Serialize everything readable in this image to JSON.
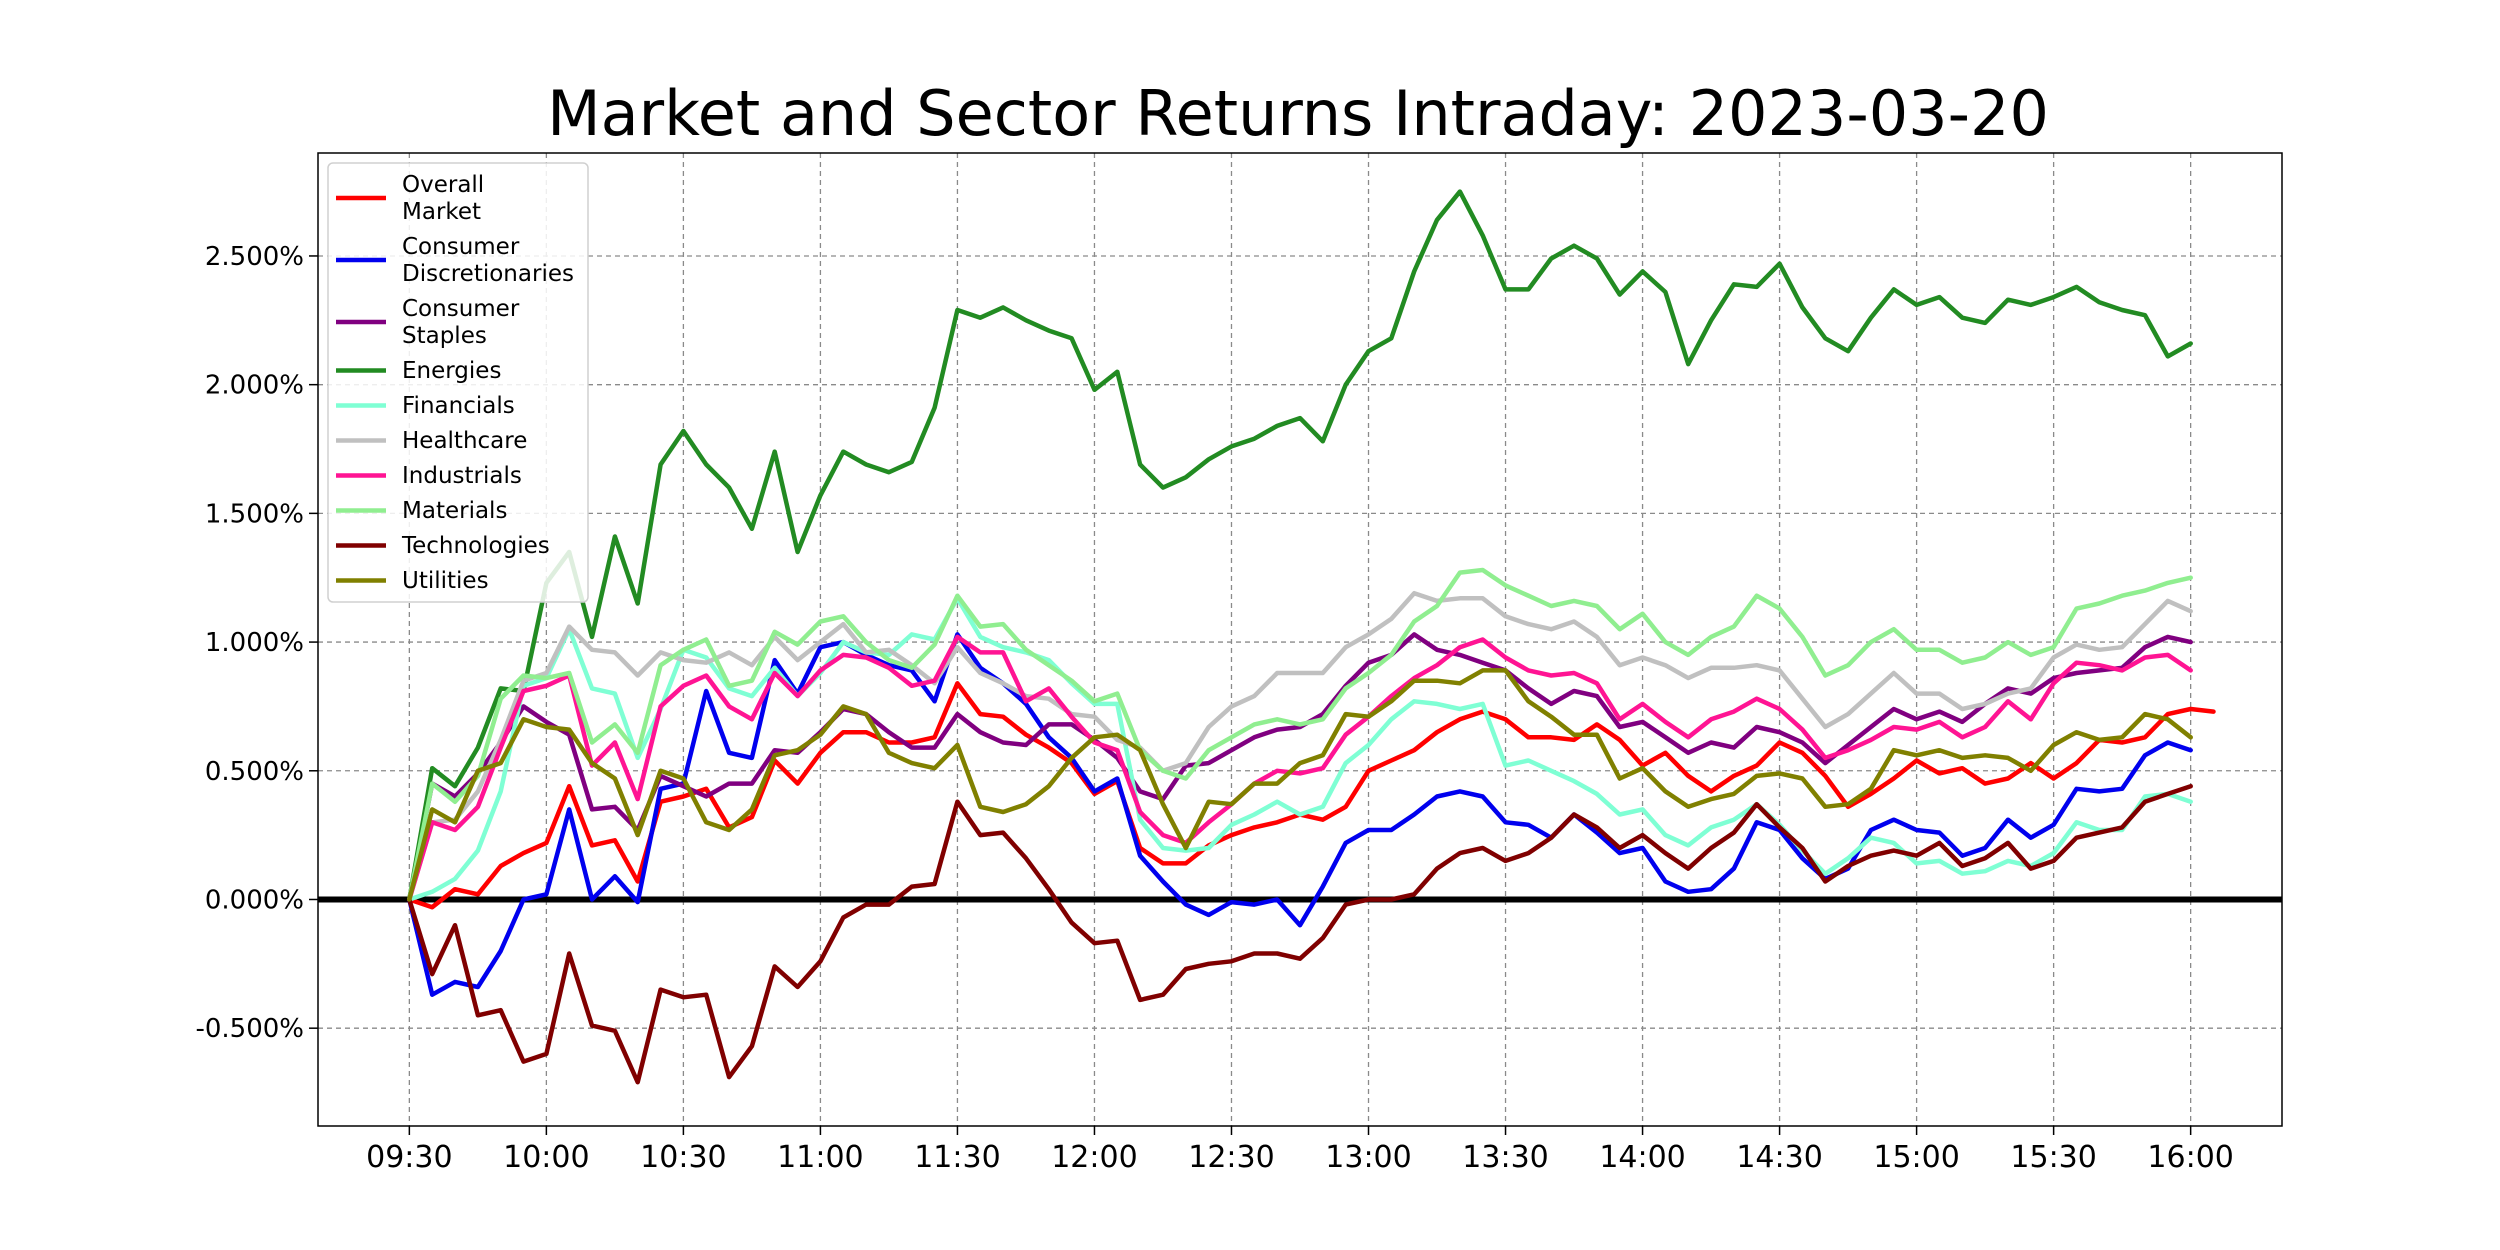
{
  "chart_data": {
    "type": "line",
    "title": "Market and Sector Returns Intraday: 2023-03-20",
    "xlabel": "",
    "ylabel": "",
    "x_tick_labels": [
      "09:30",
      "10:00",
      "10:30",
      "11:00",
      "11:30",
      "12:00",
      "12:30",
      "13:00",
      "13:30",
      "14:00",
      "14:30",
      "15:00",
      "15:30",
      "16:00"
    ],
    "y_tick_labels": [
      "-0.500%",
      "0.000%",
      "0.500%",
      "1.000%",
      "1.500%",
      "2.000%",
      "2.500%"
    ],
    "y_ticks": [
      -0.5,
      0.0,
      0.5,
      1.0,
      1.5,
      2.0,
      2.5
    ],
    "ylim": [
      -0.88,
      2.9
    ],
    "xlim": [
      "09:10",
      "16:20"
    ],
    "x_step_minutes": 5,
    "x_start": "09:30",
    "grid": true,
    "zero_line": true,
    "legend_position": "upper-left",
    "series": [
      {
        "name": "Overall\nMarket",
        "color": "#ff0000",
        "values": [
          0.0,
          -0.03,
          0.04,
          0.02,
          0.13,
          0.18,
          0.22,
          0.44,
          0.21,
          0.23,
          0.07,
          0.38,
          0.4,
          0.43,
          0.28,
          0.32,
          0.54,
          0.45,
          0.57,
          0.65,
          0.65,
          0.61,
          0.61,
          0.63,
          0.84,
          0.72,
          0.71,
          0.64,
          0.59,
          0.53,
          0.41,
          0.46,
          0.2,
          0.14,
          0.14,
          0.21,
          0.25,
          0.28,
          0.3,
          0.33,
          0.31,
          0.36,
          0.5,
          0.54,
          0.58,
          0.65,
          0.7,
          0.73,
          0.7,
          0.63,
          0.63,
          0.62,
          0.68,
          0.62,
          0.52,
          0.57,
          0.48,
          0.42,
          0.48,
          0.52,
          0.61,
          0.57,
          0.48,
          0.36,
          0.41,
          0.47,
          0.54,
          0.49,
          0.51,
          0.45,
          0.47,
          0.53,
          0.47,
          0.53,
          0.62,
          0.61,
          0.63,
          0.72,
          0.74,
          0.73
        ]
      },
      {
        "name": "Consumer\nDiscretionaries",
        "color": "#0000ee",
        "values": [
          0.0,
          -0.37,
          -0.32,
          -0.34,
          -0.2,
          0.0,
          0.02,
          0.35,
          0.0,
          0.09,
          -0.01,
          0.43,
          0.45,
          0.81,
          0.57,
          0.55,
          0.93,
          0.8,
          0.98,
          1.0,
          0.95,
          0.91,
          0.89,
          0.77,
          1.03,
          0.9,
          0.84,
          0.76,
          0.63,
          0.55,
          0.42,
          0.47,
          0.17,
          0.07,
          -0.02,
          -0.06,
          -0.01,
          -0.02,
          0.0,
          -0.1,
          0.05,
          0.22,
          0.27,
          0.27,
          0.33,
          0.4,
          0.42,
          0.4,
          0.3,
          0.29,
          0.24,
          0.33,
          0.26,
          0.18,
          0.2,
          0.07,
          0.03,
          0.04,
          0.12,
          0.3,
          0.27,
          0.16,
          0.08,
          0.12,
          0.27,
          0.31,
          0.27,
          0.26,
          0.17,
          0.2,
          0.31,
          0.24,
          0.29,
          0.43,
          0.42,
          0.43,
          0.56,
          0.61,
          0.58
        ]
      },
      {
        "name": "Consumer\nStaples",
        "color": "#800080",
        "values": [
          0.0,
          0.45,
          0.4,
          0.49,
          0.61,
          0.75,
          0.69,
          0.64,
          0.35,
          0.36,
          0.27,
          0.48,
          0.44,
          0.4,
          0.45,
          0.45,
          0.58,
          0.57,
          0.65,
          0.74,
          0.72,
          0.65,
          0.59,
          0.59,
          0.72,
          0.65,
          0.61,
          0.6,
          0.68,
          0.68,
          0.62,
          0.55,
          0.42,
          0.39,
          0.52,
          0.53,
          0.58,
          0.63,
          0.66,
          0.67,
          0.72,
          0.83,
          0.92,
          0.95,
          1.03,
          0.97,
          0.95,
          0.92,
          0.89,
          0.82,
          0.76,
          0.81,
          0.79,
          0.67,
          0.69,
          0.63,
          0.57,
          0.61,
          0.59,
          0.67,
          0.65,
          0.61,
          0.53,
          0.6,
          0.67,
          0.74,
          0.7,
          0.73,
          0.69,
          0.76,
          0.82,
          0.8,
          0.86,
          0.88,
          0.89,
          0.9,
          0.98,
          1.02,
          1.0
        ]
      },
      {
        "name": "Energies",
        "color": "#228b22",
        "values": [
          0.0,
          0.51,
          0.44,
          0.59,
          0.82,
          0.81,
          1.23,
          1.35,
          1.02,
          1.41,
          1.15,
          1.69,
          1.82,
          1.69,
          1.6,
          1.44,
          1.74,
          1.35,
          1.57,
          1.74,
          1.69,
          1.66,
          1.7,
          1.91,
          2.29,
          2.26,
          2.3,
          2.25,
          2.21,
          2.18,
          1.98,
          2.05,
          1.69,
          1.6,
          1.64,
          1.71,
          1.76,
          1.79,
          1.84,
          1.87,
          1.78,
          2.0,
          2.13,
          2.18,
          2.44,
          2.64,
          2.75,
          2.58,
          2.37,
          2.37,
          2.49,
          2.54,
          2.49,
          2.35,
          2.44,
          2.36,
          2.08,
          2.25,
          2.39,
          2.38,
          2.47,
          2.3,
          2.18,
          2.13,
          2.26,
          2.37,
          2.31,
          2.34,
          2.26,
          2.24,
          2.33,
          2.31,
          2.34,
          2.38,
          2.32,
          2.29,
          2.27,
          2.11,
          2.16
        ]
      },
      {
        "name": "Financials",
        "color": "#7fffd4",
        "values": [
          0.0,
          0.03,
          0.08,
          0.19,
          0.42,
          0.83,
          0.86,
          1.05,
          0.82,
          0.8,
          0.55,
          0.74,
          0.97,
          0.94,
          0.82,
          0.79,
          0.9,
          0.79,
          0.88,
          1.0,
          0.96,
          0.95,
          1.03,
          1.01,
          1.17,
          1.02,
          0.98,
          0.96,
          0.93,
          0.84,
          0.76,
          0.76,
          0.31,
          0.2,
          0.19,
          0.2,
          0.29,
          0.33,
          0.38,
          0.33,
          0.36,
          0.53,
          0.6,
          0.7,
          0.77,
          0.76,
          0.74,
          0.76,
          0.52,
          0.54,
          0.5,
          0.46,
          0.41,
          0.33,
          0.35,
          0.25,
          0.21,
          0.28,
          0.31,
          0.37,
          0.29,
          0.19,
          0.1,
          0.16,
          0.24,
          0.22,
          0.14,
          0.15,
          0.1,
          0.11,
          0.15,
          0.13,
          0.18,
          0.3,
          0.27,
          0.27,
          0.4,
          0.41,
          0.38
        ]
      },
      {
        "name": "Healthcare",
        "color": "#c0c0c0",
        "values": [
          0.0,
          0.3,
          0.31,
          0.42,
          0.62,
          0.85,
          0.88,
          1.06,
          0.97,
          0.96,
          0.87,
          0.96,
          0.93,
          0.92,
          0.96,
          0.91,
          1.02,
          0.93,
          1.0,
          1.07,
          0.96,
          0.97,
          0.91,
          0.84,
          0.98,
          0.88,
          0.84,
          0.79,
          0.78,
          0.72,
          0.71,
          0.62,
          0.59,
          0.5,
          0.53,
          0.67,
          0.75,
          0.79,
          0.88,
          0.88,
          0.88,
          0.98,
          1.03,
          1.09,
          1.19,
          1.16,
          1.17,
          1.17,
          1.1,
          1.07,
          1.05,
          1.08,
          1.02,
          0.91,
          0.94,
          0.91,
          0.86,
          0.9,
          0.9,
          0.91,
          0.89,
          0.78,
          0.67,
          0.72,
          0.8,
          0.88,
          0.8,
          0.8,
          0.74,
          0.76,
          0.8,
          0.82,
          0.94,
          0.99,
          0.97,
          0.98,
          1.07,
          1.16,
          1.12
        ]
      },
      {
        "name": "Industrials",
        "color": "#ff1493",
        "values": [
          0.0,
          0.3,
          0.27,
          0.36,
          0.59,
          0.81,
          0.83,
          0.87,
          0.52,
          0.61,
          0.39,
          0.75,
          0.83,
          0.87,
          0.75,
          0.7,
          0.88,
          0.79,
          0.89,
          0.95,
          0.94,
          0.9,
          0.83,
          0.85,
          1.02,
          0.96,
          0.96,
          0.77,
          0.82,
          0.71,
          0.61,
          0.58,
          0.34,
          0.25,
          0.22,
          0.3,
          0.37,
          0.45,
          0.5,
          0.49,
          0.51,
          0.64,
          0.71,
          0.79,
          0.86,
          0.91,
          0.98,
          1.01,
          0.94,
          0.89,
          0.87,
          0.88,
          0.84,
          0.7,
          0.76,
          0.69,
          0.63,
          0.7,
          0.73,
          0.78,
          0.74,
          0.66,
          0.55,
          0.58,
          0.62,
          0.67,
          0.66,
          0.69,
          0.63,
          0.67,
          0.77,
          0.7,
          0.84,
          0.92,
          0.91,
          0.89,
          0.94,
          0.95,
          0.89
        ]
      },
      {
        "name": "Materials",
        "color": "#90ee90",
        "values": [
          0.0,
          0.45,
          0.38,
          0.48,
          0.78,
          0.87,
          0.86,
          0.88,
          0.61,
          0.68,
          0.57,
          0.91,
          0.97,
          1.01,
          0.83,
          0.85,
          1.04,
          0.99,
          1.08,
          1.1,
          1.0,
          0.93,
          0.9,
          0.99,
          1.18,
          1.06,
          1.07,
          0.97,
          0.91,
          0.85,
          0.77,
          0.8,
          0.58,
          0.5,
          0.47,
          0.58,
          0.63,
          0.68,
          0.7,
          0.68,
          0.7,
          0.82,
          0.88,
          0.95,
          1.08,
          1.14,
          1.27,
          1.28,
          1.22,
          1.18,
          1.14,
          1.16,
          1.14,
          1.05,
          1.11,
          1.0,
          0.95,
          1.02,
          1.06,
          1.18,
          1.13,
          1.02,
          0.87,
          0.91,
          1.0,
          1.05,
          0.97,
          0.97,
          0.92,
          0.94,
          1.0,
          0.95,
          0.98,
          1.13,
          1.15,
          1.18,
          1.2,
          1.23,
          1.25
        ]
      },
      {
        "name": "Technologies",
        "color": "#800000",
        "values": [
          0.0,
          -0.29,
          -0.1,
          -0.45,
          -0.43,
          -0.63,
          -0.6,
          -0.21,
          -0.49,
          -0.51,
          -0.71,
          -0.35,
          -0.38,
          -0.37,
          -0.69,
          -0.57,
          -0.26,
          -0.34,
          -0.24,
          -0.07,
          -0.02,
          -0.02,
          0.05,
          0.06,
          0.38,
          0.25,
          0.26,
          0.16,
          0.04,
          -0.09,
          -0.17,
          -0.16,
          -0.39,
          -0.37,
          -0.27,
          -0.25,
          -0.24,
          -0.21,
          -0.21,
          -0.23,
          -0.15,
          -0.02,
          0.0,
          0.0,
          0.02,
          0.12,
          0.18,
          0.2,
          0.15,
          0.18,
          0.24,
          0.33,
          0.28,
          0.2,
          0.25,
          0.18,
          0.12,
          0.2,
          0.26,
          0.37,
          0.28,
          0.2,
          0.07,
          0.13,
          0.17,
          0.19,
          0.17,
          0.22,
          0.13,
          0.16,
          0.22,
          0.12,
          0.15,
          0.24,
          0.26,
          0.28,
          0.38,
          0.41,
          0.44
        ]
      },
      {
        "name": "Utilities",
        "color": "#808000",
        "values": [
          0.0,
          0.35,
          0.3,
          0.5,
          0.53,
          0.7,
          0.67,
          0.66,
          0.53,
          0.47,
          0.25,
          0.5,
          0.47,
          0.3,
          0.27,
          0.35,
          0.56,
          0.58,
          0.64,
          0.75,
          0.72,
          0.57,
          0.53,
          0.51,
          0.6,
          0.36,
          0.34,
          0.37,
          0.44,
          0.55,
          0.63,
          0.64,
          0.58,
          0.37,
          0.2,
          0.38,
          0.37,
          0.45,
          0.45,
          0.53,
          0.56,
          0.72,
          0.71,
          0.77,
          0.85,
          0.85,
          0.84,
          0.89,
          0.89,
          0.77,
          0.71,
          0.64,
          0.64,
          0.47,
          0.51,
          0.42,
          0.36,
          0.39,
          0.41,
          0.48,
          0.49,
          0.47,
          0.36,
          0.37,
          0.43,
          0.58,
          0.56,
          0.58,
          0.55,
          0.56,
          0.55,
          0.5,
          0.6,
          0.65,
          0.62,
          0.63,
          0.72,
          0.7,
          0.63
        ]
      }
    ]
  }
}
